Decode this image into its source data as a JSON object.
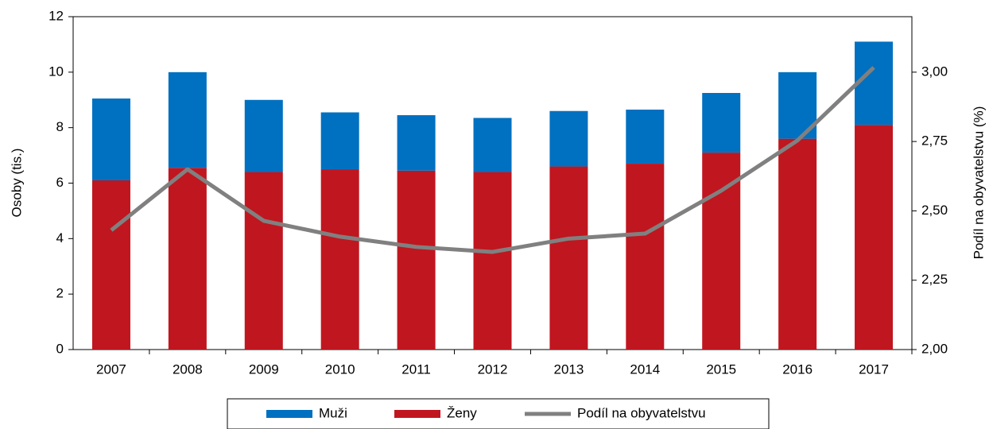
{
  "chart_data": {
    "type": "bar",
    "categories": [
      "2007",
      "2008",
      "2009",
      "2010",
      "2011",
      "2012",
      "2013",
      "2014",
      "2015",
      "2016",
      "2017"
    ],
    "series": [
      {
        "name": "Muži",
        "color": "#0070c0",
        "values": [
          2.95,
          3.45,
          2.6,
          2.05,
          2.0,
          1.95,
          2.0,
          1.95,
          2.15,
          2.4,
          3.0
        ]
      },
      {
        "name": "Ženy",
        "color": "#c0161f",
        "values": [
          6.1,
          6.55,
          6.4,
          6.5,
          6.45,
          6.4,
          6.6,
          6.7,
          7.1,
          7.6,
          8.1
        ]
      },
      {
        "name": "Podíl na obyvatelstvu",
        "color": "#808080",
        "type": "line",
        "axis": "y2",
        "values": [
          2.43,
          2.65,
          2.464,
          2.407,
          2.37,
          2.352,
          2.4,
          2.418,
          2.573,
          2.754,
          3.017
        ]
      }
    ],
    "stacked": true,
    "y_label": "Osoby (tis.)",
    "y2_label": "Podíl na obyvatelstvu (%)",
    "ylim": [
      0,
      12
    ],
    "yticks": [
      0,
      2,
      4,
      6,
      8,
      10,
      12
    ],
    "y2lim": [
      2,
      3.2
    ],
    "y2ticks": [
      {
        "value": 2,
        "label": "2,00"
      },
      {
        "value": 2.25,
        "label": "2,25"
      },
      {
        "value": 2.5,
        "label": "2,50"
      },
      {
        "value": 2.75,
        "label": "2,75"
      },
      {
        "value": 3,
        "label": "3,00"
      }
    ],
    "legend": "bottom"
  }
}
